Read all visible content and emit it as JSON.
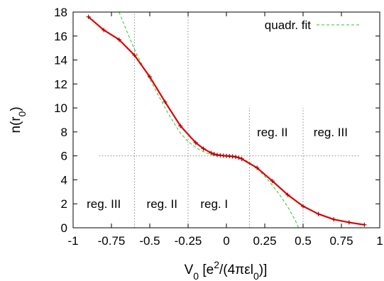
{
  "chart_data": {
    "type": "line",
    "xlim": [
      -1,
      1
    ],
    "ylim": [
      0,
      18
    ],
    "x_ticks": [
      -1,
      -0.75,
      -0.5,
      -0.25,
      0,
      0.25,
      0.5,
      0.75,
      1
    ],
    "x_tick_labels": [
      "-1",
      "-0.75",
      "-0.5",
      "-0.25",
      "0",
      "0.25",
      "0.5",
      "0.75",
      "1"
    ],
    "y_ticks": [
      0,
      2,
      4,
      6,
      8,
      10,
      12,
      14,
      16,
      18
    ],
    "y_tick_labels": [
      "0",
      "2",
      "4",
      "6",
      "8",
      "10",
      "12",
      "14",
      "16",
      "18"
    ],
    "series": [
      {
        "color": "#e00000",
        "style": "solid-with-markers",
        "x": [
          -0.9,
          -0.8,
          -0.7,
          -0.6,
          -0.5,
          -0.4,
          -0.3,
          -0.2,
          -0.15,
          -0.1,
          -0.08,
          -0.06,
          -0.04,
          -0.02,
          0.0,
          0.02,
          0.04,
          0.06,
          0.08,
          0.1,
          0.2,
          0.3,
          0.4,
          0.5,
          0.6,
          0.7,
          0.8,
          0.9
        ],
        "y": [
          17.6,
          16.5,
          15.7,
          14.4,
          12.6,
          10.5,
          8.5,
          7.1,
          6.6,
          6.25,
          6.15,
          6.08,
          6.05,
          6.02,
          6.0,
          5.98,
          5.95,
          5.92,
          5.85,
          5.75,
          5.0,
          3.9,
          2.75,
          1.8,
          1.15,
          0.7,
          0.45,
          0.25
        ]
      },
      {
        "name": "quadr. fit",
        "color": "#22cc22",
        "style": "dashed",
        "x": [
          -0.7,
          -0.65,
          -0.6,
          -0.55,
          -0.5,
          -0.45,
          -0.4,
          -0.35,
          -0.3,
          -0.25,
          -0.2,
          -0.15,
          -0.1,
          -0.05,
          0.0,
          0.05,
          0.1,
          0.15,
          0.2,
          0.25,
          0.3,
          0.35,
          0.4,
          0.45,
          0.47
        ],
        "y": [
          18.0,
          16.4,
          14.9,
          13.6,
          12.4,
          11.2,
          10.0,
          8.9,
          7.9,
          7.2,
          6.7,
          6.35,
          6.1,
          6.0,
          6.0,
          5.95,
          5.8,
          5.45,
          4.95,
          4.3,
          3.55,
          2.7,
          1.75,
          0.6,
          0.0
        ]
      }
    ],
    "legend": {
      "position": "top-right",
      "entries": [
        "quadr. fit"
      ]
    },
    "reference_lines": {
      "horizontal_y": 6,
      "horizontal_x_range": [
        -0.83,
        0.87
      ],
      "vertical": [
        {
          "x": -0.6,
          "y_range": [
            0,
            18
          ]
        },
        {
          "x": -0.25,
          "y_range": [
            0,
            18
          ]
        },
        {
          "x": 0.15,
          "y_range": [
            0,
            10
          ]
        },
        {
          "x": 0.5,
          "y_range": [
            0,
            10
          ]
        }
      ]
    },
    "annotations": [
      {
        "text": "reg. III",
        "x": -0.8,
        "y": 2
      },
      {
        "text": "reg. II",
        "x": -0.42,
        "y": 2
      },
      {
        "text": "reg. I",
        "x": -0.08,
        "y": 2
      },
      {
        "text": "reg. II",
        "x": 0.3,
        "y": 8
      },
      {
        "text": "reg. III",
        "x": 0.68,
        "y": 8
      }
    ]
  }
}
